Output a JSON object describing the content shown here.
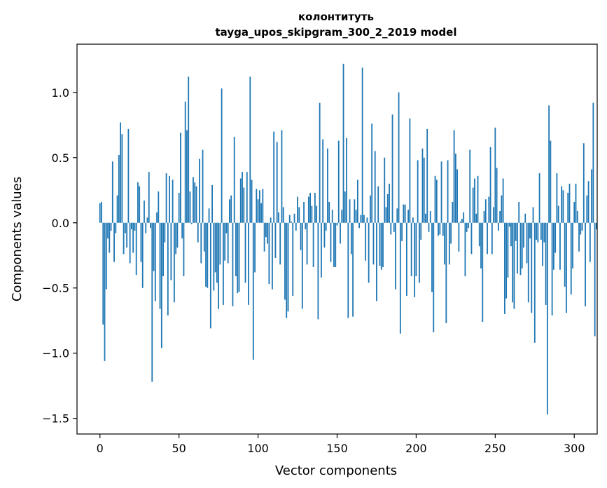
{
  "chart_data": {
    "type": "bar",
    "title": "колонтитуть",
    "subtitle": "tayga_upos_skipgram_300_2_2019 model",
    "xlabel": "Vector components",
    "ylabel": "Components values",
    "xlim": [
      -14.5,
      314.5
    ],
    "ylim": [
      -1.62,
      1.37
    ],
    "xticks": [
      0,
      50,
      100,
      150,
      200,
      250,
      300
    ],
    "xtick_labels": [
      "0",
      "50",
      "100",
      "150",
      "200",
      "250",
      "300"
    ],
    "yticks": [
      -1.5,
      -1.0,
      -0.5,
      0.0,
      0.5,
      1.0
    ],
    "ytick_labels": [
      "−1.5",
      "−1.0",
      "−0.5",
      "0.0",
      "0.5",
      "1.0"
    ],
    "grid": false,
    "bar_color": "#1f77b4",
    "values": [
      0.15,
      0.16,
      -0.78,
      -1.06,
      -0.51,
      -0.12,
      -0.23,
      -0.06,
      0.47,
      -0.3,
      -0.08,
      0.21,
      0.52,
      0.77,
      0.68,
      -0.24,
      -0.08,
      -0.19,
      0.72,
      -0.31,
      -0.05,
      -0.23,
      -0.06,
      -0.4,
      0.31,
      0.28,
      -0.3,
      -0.5,
      0.17,
      -0.08,
      0.04,
      0.39,
      -0.04,
      -1.22,
      -0.37,
      -0.6,
      0.08,
      0.24,
      -0.66,
      -0.96,
      -0.41,
      -0.15,
      0.38,
      -0.71,
      0.36,
      -0.44,
      0.33,
      -0.61,
      -0.24,
      -0.19,
      0.23,
      0.69,
      -0.12,
      -0.41,
      0.93,
      0.71,
      1.12,
      0.24,
      -0.01,
      0.35,
      0.31,
      0.28,
      -0.15,
      0.49,
      -0.31,
      0.56,
      -0.22,
      -0.49,
      -0.5,
      0.11,
      -0.81,
      0.29,
      -0.52,
      -0.38,
      -0.46,
      -0.66,
      -0.32,
      1.03,
      -0.63,
      -0.29,
      -0.08,
      -0.31,
      0.18,
      0.21,
      -0.64,
      0.66,
      -0.41,
      -0.54,
      -0.53,
      0.34,
      0.39,
      0.27,
      -0.46,
      0.39,
      -0.63,
      1.12,
      0.33,
      -1.05,
      -0.38,
      0.26,
      0.18,
      0.25,
      0.15,
      0.26,
      -0.22,
      -0.11,
      -0.16,
      -0.47,
      0.04,
      -0.51,
      0.7,
      -0.27,
      0.62,
      0.08,
      -0.32,
      0.71,
      0.12,
      -0.59,
      -0.73,
      -0.68,
      0.06,
      0.01,
      -0.56,
      0.07,
      -0.06,
      0.2,
      0.12,
      -0.21,
      -0.66,
      0.16,
      -0.05,
      -0.32,
      0.2,
      0.23,
      0.13,
      -0.34,
      0.23,
      0.13,
      -0.74,
      0.92,
      -0.42,
      0.64,
      -0.19,
      -0.06,
      0.57,
      0.16,
      -0.3,
      0.1,
      -0.34,
      -0.34,
      -0.02,
      0.63,
      -0.16,
      0.1,
      1.22,
      0.24,
      0.65,
      -0.73,
      0.18,
      -0.24,
      -0.72,
      0.18,
      0.1,
      0.33,
      -0.04,
      0.06,
      1.19,
      0.06,
      -0.29,
      0.04,
      -0.46,
      0.21,
      0.76,
      -0.32,
      0.55,
      -0.6,
      0.28,
      -0.33,
      -0.36,
      -0.34,
      0.5,
      0.12,
      0.22,
      0.3,
      -0.09,
      0.83,
      -0.07,
      -0.51,
      0.11,
      1.0,
      -0.85,
      -0.14,
      0.14,
      0.14,
      -0.56,
      0.1,
      0.8,
      -0.41,
      0.04,
      -0.57,
      -0.41,
      0.48,
      -0.46,
      -0.13,
      0.57,
      0.5,
      0.07,
      0.72,
      -0.07,
      0.09,
      -0.53,
      -0.84,
      0.36,
      0.33,
      -0.1,
      -0.09,
      0.47,
      -0.1,
      -0.32,
      -0.77,
      0.48,
      -0.32,
      -0.16,
      0.16,
      0.71,
      0.53,
      0.41,
      -0.22,
      0.01,
      0.03,
      0.08,
      -0.41,
      -0.07,
      -0.04,
      0.56,
      -0.24,
      0.27,
      0.34,
      0.07,
      0.36,
      -0.18,
      -0.35,
      -0.76,
      0.09,
      0.18,
      -0.24,
      0.2,
      0.58,
      -0.24,
      0.12,
      0.73,
      0.42,
      -0.06,
      0.09,
      0.21,
      0.34,
      -0.7,
      -0.58,
      -0.42,
      -0.03,
      -0.18,
      -0.61,
      -0.66,
      -0.14,
      -0.39,
      0.16,
      -0.4,
      -0.35,
      -0.19,
      0.07,
      -0.31,
      -0.61,
      -0.12,
      -0.69,
      0.12,
      -0.92,
      -0.13,
      -0.15,
      0.38,
      -0.13,
      -0.33,
      -0.15,
      -0.63,
      -1.47,
      0.9,
      0.63,
      -0.71,
      -0.36,
      -0.23,
      0.38,
      0.13,
      -0.36,
      0.28,
      0.25,
      -0.49,
      -0.69,
      0.23,
      0.3,
      -0.55,
      -0.35,
      0.16,
      0.3,
      0.09,
      -0.22,
      -0.09,
      -0.06,
      0.61,
      -0.64,
      0.21,
      0.32,
      -0.3,
      0.41,
      0.92,
      -0.87,
      -0.05
    ]
  }
}
